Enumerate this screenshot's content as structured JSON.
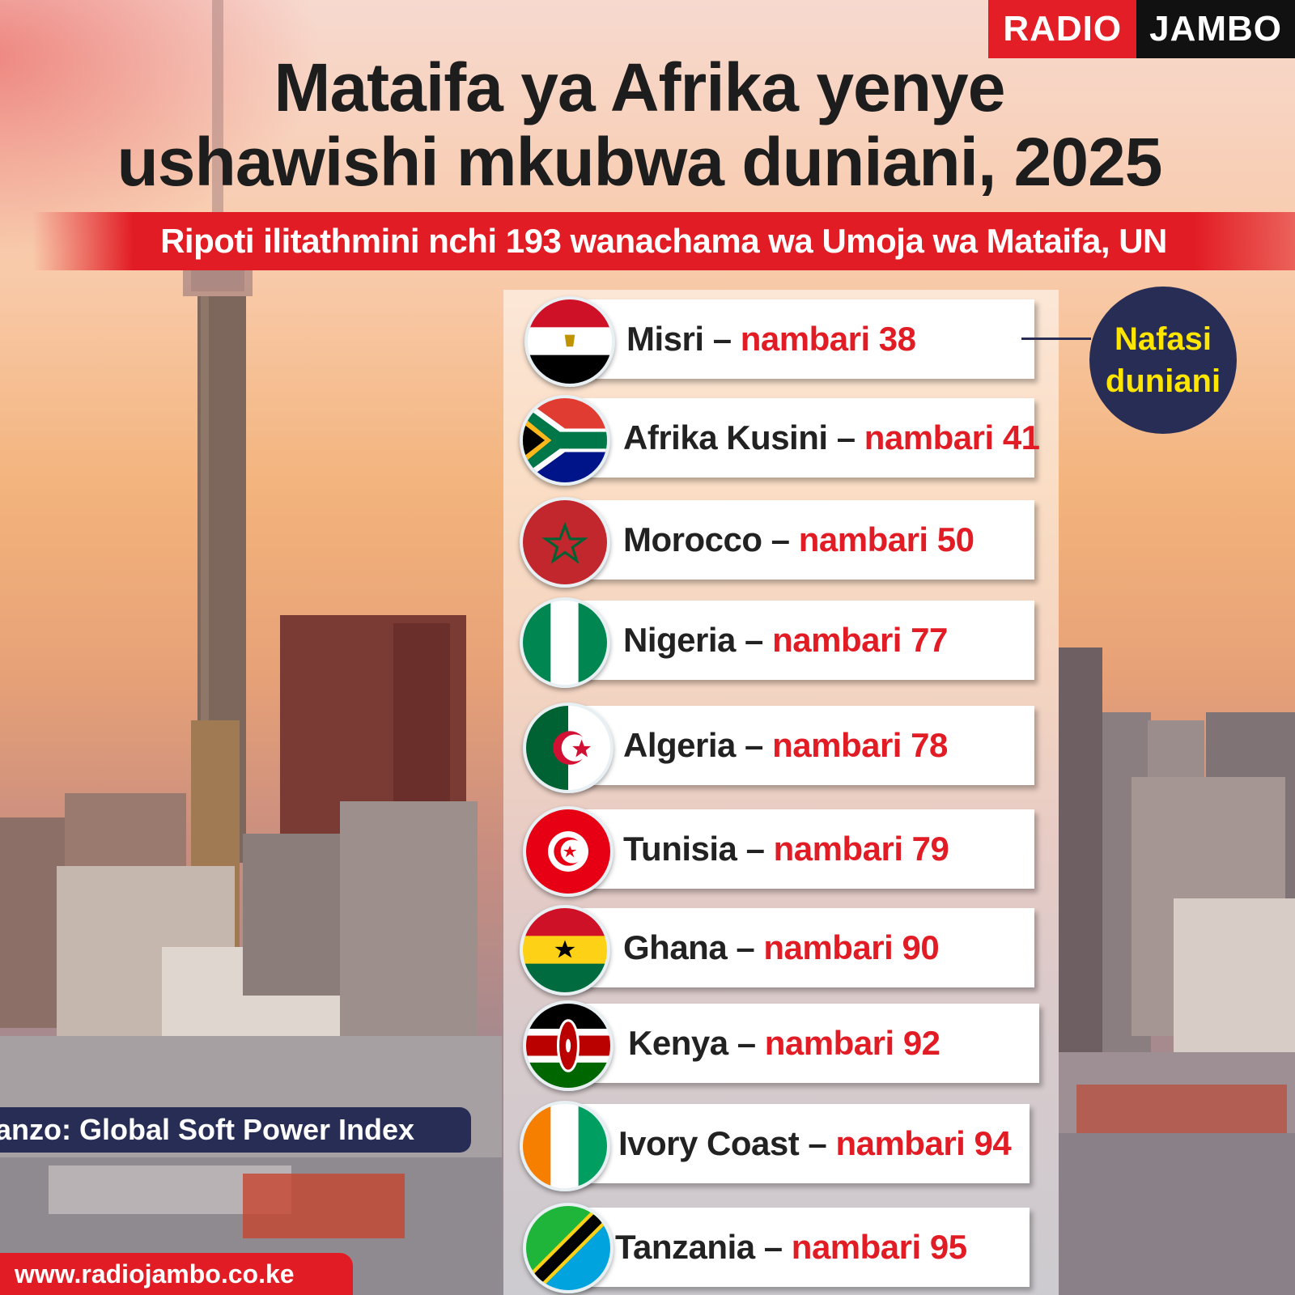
{
  "brand": {
    "radio": "RADIO",
    "jambo": "JAMBO",
    "website": "www.radiojambo.co.ke"
  },
  "title": {
    "line1": "Mataifa ya Afrika yenye",
    "line2": "ushawishi mkubwa duniani, 2025"
  },
  "subtitle": "Ripoti ilitathmini nchi 193 wanachama wa Umoja wa Mataifa, UN",
  "badge": {
    "line1": "Nafasi",
    "line2": "duniani"
  },
  "source": "anzo:  Global Soft Power Index",
  "colors": {
    "accent_red": "#e21c24",
    "navy": "#272d55",
    "badge_text": "#ffe600"
  },
  "rankings": [
    {
      "country": "Misri",
      "sep": " – ",
      "rank_text": "nambari 38",
      "flag": "egypt-flag-icon"
    },
    {
      "country": "Afrika Kusini",
      "sep": " – ",
      "rank_text": "nambari 41",
      "flag": "south-africa-flag-icon"
    },
    {
      "country": "Morocco",
      "sep": " – ",
      "rank_text": "nambari  50",
      "flag": "morocco-flag-icon"
    },
    {
      "country": "Nigeria",
      "sep": " – ",
      "rank_text": "nambari  77",
      "flag": "nigeria-flag-icon"
    },
    {
      "country": "Algeria",
      "sep": " – ",
      "rank_text": "nambari  78",
      "flag": "algeria-flag-icon"
    },
    {
      "country": "Tunisia",
      "sep": " – ",
      "rank_text": "nambari  79",
      "flag": "tunisia-flag-icon"
    },
    {
      "country": "Ghana",
      "sep": " – ",
      "rank_text": "nambari  90",
      "flag": "ghana-flag-icon"
    },
    {
      "country": "Kenya",
      "sep": " – ",
      "rank_text": "nambari  92",
      "flag": "kenya-flag-icon"
    },
    {
      "country": "Ivory Coast",
      "sep": " – ",
      "rank_text": "nambari  94",
      "flag": "ivory-coast-flag-icon"
    },
    {
      "country": "Tanzania",
      "sep": " – ",
      "rank_text": "nambari  95",
      "flag": "tanzania-flag-icon"
    }
  ]
}
